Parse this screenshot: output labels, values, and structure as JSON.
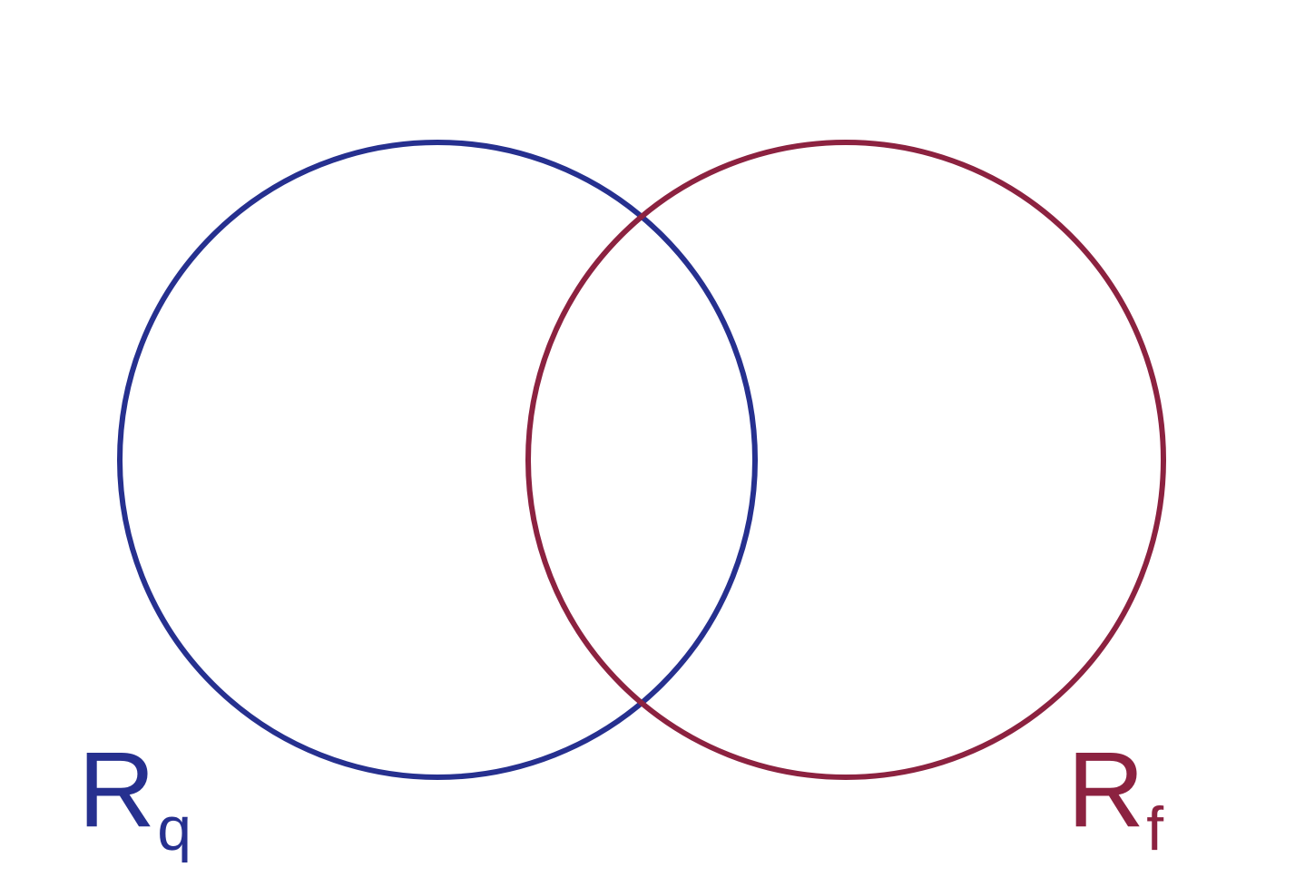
{
  "diagram": {
    "type": "venn",
    "sets": [
      {
        "id": "q",
        "label_main": "R",
        "label_sub": "q",
        "color": "#26308f"
      },
      {
        "id": "f",
        "label_main": "R",
        "label_sub": "f",
        "color": "#8c2240"
      }
    ]
  }
}
